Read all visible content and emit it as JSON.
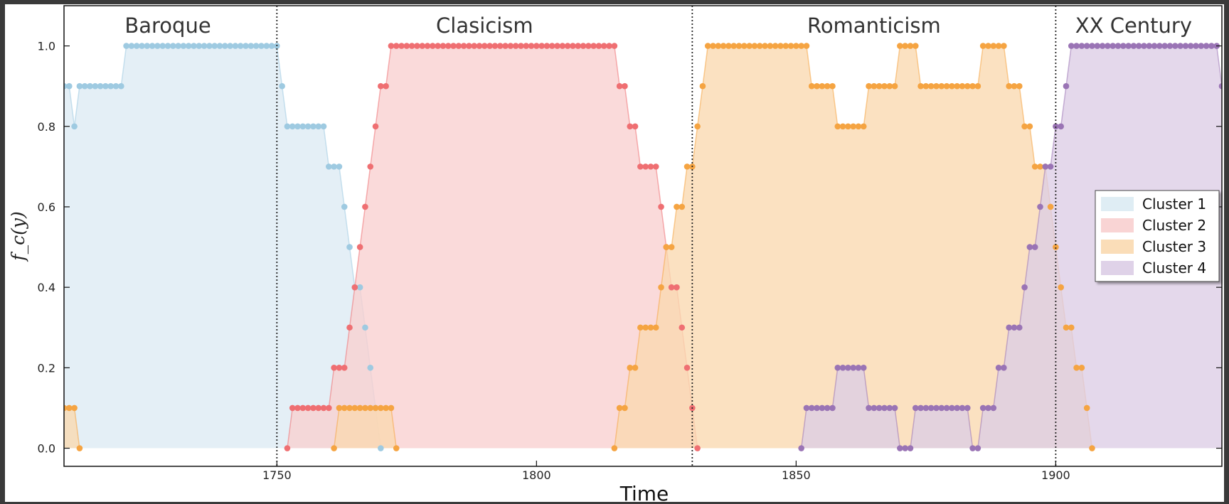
{
  "chart_data": {
    "type": "area",
    "xlabel": "Time",
    "ylabel": "f_c(y)",
    "xlim": [
      1709,
      1932
    ],
    "ylim": [
      -0.045,
      1.1
    ],
    "xticks": [
      1750,
      1800,
      1850,
      1900
    ],
    "yticks": [
      0.0,
      0.2,
      0.4,
      0.6,
      0.8,
      1.0
    ],
    "ytick_labels": [
      "0.0",
      "0.2",
      "0.4",
      "0.6",
      "0.8",
      "1.0"
    ],
    "era_boundaries": [
      1750,
      1830,
      1900
    ],
    "eras": [
      {
        "label": "Baroque",
        "center": 1729
      },
      {
        "label": "Clasicism",
        "center": 1790
      },
      {
        "label": "Romanticism",
        "center": 1865
      },
      {
        "label": "XX Century",
        "center": 1915
      }
    ],
    "x_start": 1709,
    "legend_position": "center-right",
    "series": [
      {
        "name": "Cluster 1",
        "color": "#9ecae1",
        "fill": "#dcebf3",
        "values": [
          0.9,
          0.9,
          0.8,
          0.9,
          0.9,
          0.9,
          0.9,
          0.9,
          0.9,
          0.9,
          0.9,
          0.9,
          1,
          1,
          1,
          1,
          1,
          1,
          1,
          1,
          1,
          1,
          1,
          1,
          1,
          1,
          1,
          1,
          1,
          1,
          1,
          1,
          1,
          1,
          1,
          1,
          1,
          1,
          1,
          1,
          1,
          1,
          0.9,
          0.8,
          0.8,
          0.8,
          0.8,
          0.8,
          0.8,
          0.8,
          0.8,
          0.7,
          0.7,
          0.7,
          0.6,
          0.5,
          0.4,
          0.4,
          0.3,
          0.2,
          0.1,
          0
        ]
      },
      {
        "name": "Cluster 2",
        "color": "#ef6f72",
        "fill": "#f8cfcf",
        "start": 1752,
        "values": [
          0,
          0.1,
          0.1,
          0.1,
          0.1,
          0.1,
          0.1,
          0.1,
          0.1,
          0.2,
          0.2,
          0.2,
          0.3,
          0.4,
          0.5,
          0.6,
          0.7,
          0.8,
          0.9,
          0.9,
          1,
          1,
          1,
          1,
          1,
          1,
          1,
          1,
          1,
          1,
          1,
          1,
          1,
          1,
          1,
          1,
          1,
          1,
          1,
          1,
          1,
          1,
          1,
          1,
          1,
          1,
          1,
          1,
          1,
          1,
          1,
          1,
          1,
          1,
          1,
          1,
          1,
          1,
          1,
          1,
          1,
          1,
          1,
          1,
          0.9,
          0.9,
          0.8,
          0.8,
          0.7,
          0.7,
          0.7,
          0.7,
          0.6,
          0.5,
          0.4,
          0.4,
          0.3,
          0.2,
          0.1,
          0
        ]
      },
      {
        "name": "Cluster 3",
        "color": "#f5a442",
        "fill": "#fad9b0",
        "segments": [
          {
            "start": 1709,
            "values": [
              0.1,
              0.1,
              0.1,
              0
            ]
          },
          {
            "start": 1761,
            "values": [
              0,
              0.1,
              0.1,
              0.1,
              0.1,
              0.1,
              0.1,
              0.1,
              0.1,
              0.1,
              0.1,
              0.1,
              0
            ]
          },
          {
            "start": 1815,
            "values": [
              0,
              0.1,
              0.1,
              0.2,
              0.2,
              0.3,
              0.3,
              0.3,
              0.3,
              0.4,
              0.5,
              0.5,
              0.6,
              0.6,
              0.7,
              0.7,
              0.8,
              0.9,
              1,
              1,
              1,
              1,
              1,
              1,
              1,
              1,
              1,
              1,
              1,
              1,
              1,
              1,
              1,
              1,
              1,
              1,
              1,
              1,
              0.9,
              0.9,
              0.9,
              0.9,
              0.9,
              0.8,
              0.8,
              0.8,
              0.8,
              0.8,
              0.8,
              0.9,
              0.9,
              0.9,
              0.9,
              0.9,
              0.9,
              1,
              1,
              1,
              1,
              0.9,
              0.9,
              0.9,
              0.9,
              0.9,
              0.9,
              0.9,
              0.9,
              0.9,
              0.9,
              0.9,
              0.9,
              1,
              1,
              1,
              1,
              1,
              0.9,
              0.9,
              0.9,
              0.8,
              0.8,
              0.7,
              0.7,
              0.7,
              0.6,
              0.5,
              0.4,
              0.3,
              0.3,
              0.2,
              0.2,
              0.1,
              0
            ]
          }
        ]
      },
      {
        "name": "Cluster 4",
        "color": "#9a74b5",
        "fill": "#dccde6",
        "start": 1851,
        "values": [
          0,
          0.1,
          0.1,
          0.1,
          0.1,
          0.1,
          0.1,
          0.2,
          0.2,
          0.2,
          0.2,
          0.2,
          0.2,
          0.1,
          0.1,
          0.1,
          0.1,
          0.1,
          0.1,
          0,
          0,
          0,
          0.1,
          0.1,
          0.1,
          0.1,
          0.1,
          0.1,
          0.1,
          0.1,
          0.1,
          0.1,
          0.1,
          0,
          0,
          0.1,
          0.1,
          0.1,
          0.2,
          0.2,
          0.3,
          0.3,
          0.3,
          0.4,
          0.5,
          0.5,
          0.6,
          0.7,
          0.7,
          0.8,
          0.8,
          0.9,
          1,
          1,
          1,
          1,
          1,
          1,
          1,
          1,
          1,
          1,
          1,
          1,
          1,
          1,
          1,
          1,
          1,
          1,
          1,
          1,
          1,
          1,
          1,
          1,
          1,
          1,
          1,
          1,
          1,
          0.9
        ]
      }
    ]
  }
}
